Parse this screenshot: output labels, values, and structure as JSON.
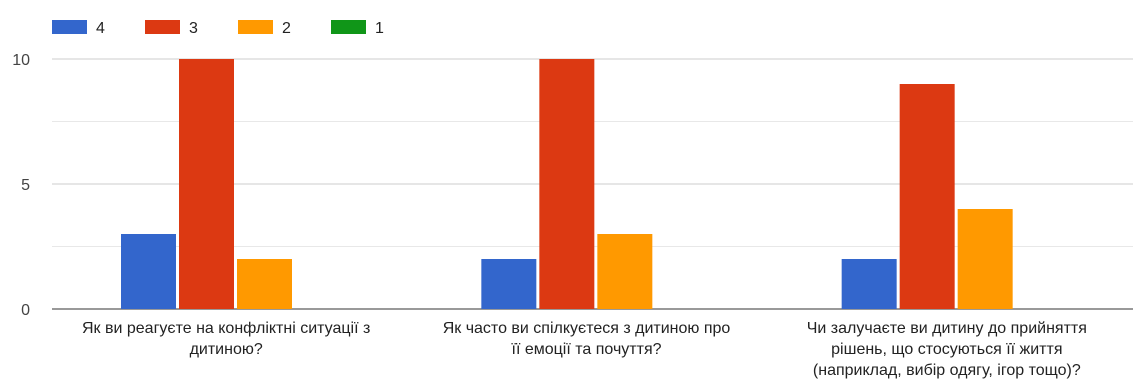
{
  "chart_data": {
    "type": "bar",
    "categories": [
      [
        "Як ви реагуєте на конфліктні ситуації з",
        "дитиною?"
      ],
      [
        "Як часто ви спілкуєтеся з дитиною про",
        "її емоції та почуття?"
      ],
      [
        "Чи залучаєте ви дитину до прийняття",
        "рішень, що стосуються її життя",
        "(наприклад, вибір одягу, ігор тощо)?"
      ]
    ],
    "series": [
      {
        "name": "4",
        "color": "#3366cc",
        "values": [
          3,
          2,
          2
        ]
      },
      {
        "name": "3",
        "color": "#dc3912",
        "values": [
          10,
          10,
          9
        ]
      },
      {
        "name": "2",
        "color": "#ff9900",
        "values": [
          2,
          3,
          4
        ]
      },
      {
        "name": "1",
        "color": "#109618",
        "values": [
          0,
          0,
          0
        ]
      }
    ],
    "yticks": [
      "0",
      "5",
      "10"
    ],
    "ylim": [
      0,
      10
    ],
    "grid": true,
    "legend_position": "top-left"
  }
}
